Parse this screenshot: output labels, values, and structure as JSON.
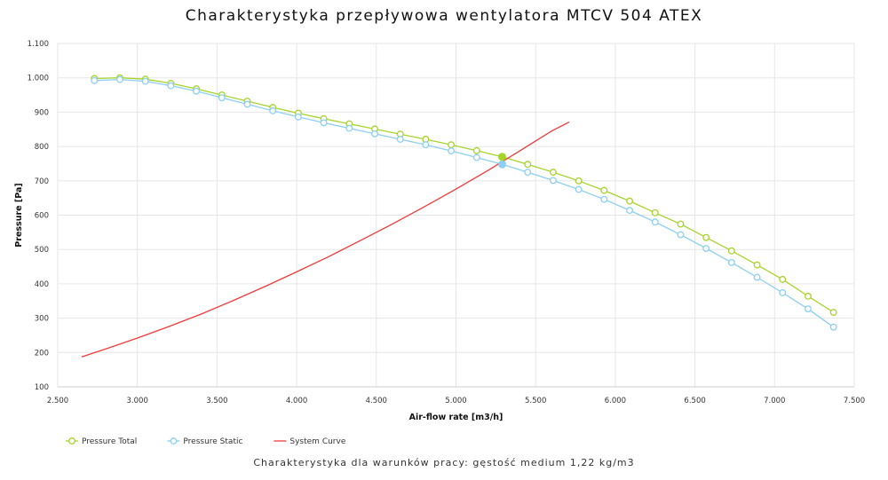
{
  "chart_data": {
    "type": "line",
    "title": "Charakterystyka przepływowa wentylatora MTCV 504 ATEX",
    "subtitle": "Charakterystyka dla warunków pracy: gęstość medium 1,22 kg/m3",
    "xlabel": "Air-flow rate [m3/h]",
    "ylabel": "Pressure [Pa]",
    "xlim": [
      2500,
      7500
    ],
    "ylim": [
      100,
      1100
    ],
    "x_ticks": [
      2500,
      3000,
      3500,
      4000,
      4500,
      5000,
      5500,
      6000,
      6500,
      7000,
      7500
    ],
    "x_tick_labels": [
      "2.500",
      "3.000",
      "3.500",
      "4.000",
      "4.500",
      "5.000",
      "5.500",
      "6.000",
      "6.500",
      "7.000",
      "7.500"
    ],
    "y_ticks": [
      100,
      200,
      300,
      400,
      500,
      600,
      700,
      800,
      900,
      1000,
      1100
    ],
    "y_tick_labels": [
      "100",
      "200",
      "300",
      "400",
      "500",
      "600",
      "700",
      "800",
      "900",
      "1.000",
      "1.100"
    ],
    "grid": true,
    "legend_position": "bottom-left",
    "series": [
      {
        "name": "Pressure Total",
        "color": "#a6d42a",
        "marker": "circle-open",
        "x": [
          2730,
          2890,
          3050,
          3210,
          3370,
          3530,
          3690,
          3850,
          4010,
          4170,
          4330,
          4490,
          4650,
          4810,
          4970,
          5130,
          5290,
          5450,
          5610,
          5770,
          5930,
          6090,
          6250,
          6410,
          6570,
          6730,
          6890,
          7050,
          7210,
          7370
        ],
        "y": [
          998,
          1000,
          996,
          984,
          968,
          950,
          932,
          914,
          897,
          881,
          866,
          851,
          836,
          821,
          805,
          788,
          770,
          748,
          725,
          700,
          672,
          641,
          607,
          574,
          535,
          496,
          455,
          413,
          364,
          317
        ]
      },
      {
        "name": "Pressure Static",
        "color": "#8ccff2",
        "marker": "circle-open",
        "x": [
          2730,
          2890,
          3050,
          3210,
          3370,
          3530,
          3690,
          3850,
          4010,
          4170,
          4330,
          4490,
          4650,
          4810,
          4970,
          5130,
          5290,
          5450,
          5610,
          5770,
          5930,
          6090,
          6250,
          6410,
          6570,
          6730,
          6890,
          7050,
          7210,
          7370
        ],
        "y": [
          992,
          995,
          990,
          977,
          961,
          942,
          923,
          904,
          886,
          869,
          853,
          837,
          821,
          805,
          787,
          768,
          748,
          725,
          701,
          675,
          646,
          614,
          580,
          543,
          503,
          462,
          419,
          374,
          327,
          274
        ]
      },
      {
        "name": "System Curve",
        "color": "#f23a3a",
        "marker": "none",
        "x": [
          2650,
          2800,
          3000,
          3200,
          3400,
          3600,
          3800,
          4000,
          4200,
          4400,
          4600,
          4800,
          5000,
          5200,
          5400,
          5600,
          5710
        ],
        "y": [
          187,
          210,
          242,
          276,
          312,
          351,
          392,
          435,
          479,
          526,
          574,
          624,
          676,
          730,
          787,
          845,
          871
        ]
      }
    ],
    "operating_point": {
      "x": 5290,
      "total": 770,
      "static": 748
    }
  }
}
